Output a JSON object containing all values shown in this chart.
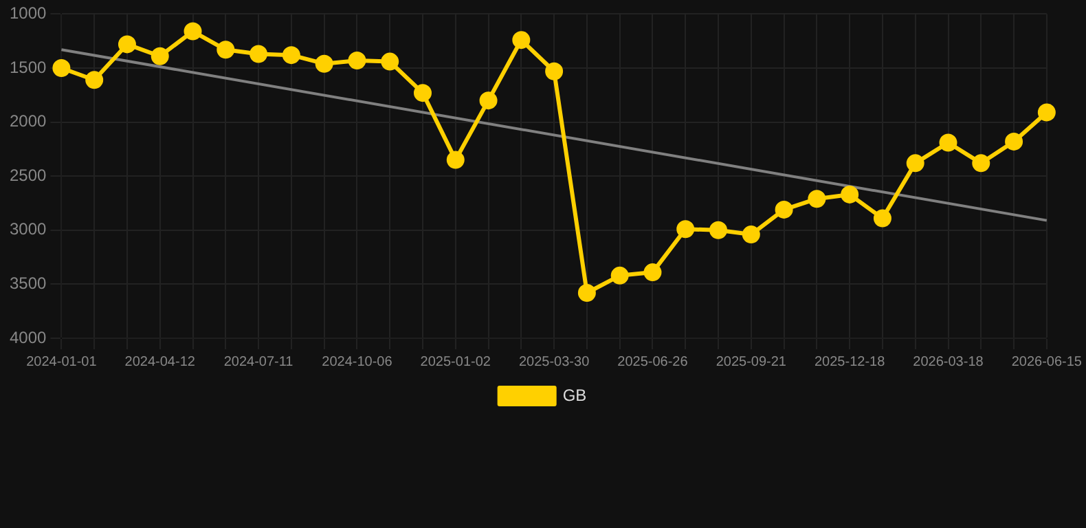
{
  "chart_data": {
    "type": "line",
    "categories": [
      "2024-01-01",
      null,
      null,
      "2024-04-12",
      null,
      null,
      "2024-07-11",
      null,
      null,
      "2024-10-06",
      null,
      null,
      "2025-01-02",
      null,
      null,
      "2025-03-30",
      null,
      null,
      "2025-06-26",
      null,
      null,
      "2025-09-21",
      null,
      null,
      "2025-12-18",
      null,
      null,
      "2026-03-18",
      null,
      null,
      "2026-06-15"
    ],
    "series": [
      {
        "name": "GB",
        "color": "#ffd000",
        "marker": "circle",
        "values": [
          1500,
          1610,
          1280,
          1390,
          1160,
          1330,
          1370,
          1380,
          1460,
          1430,
          1440,
          1730,
          2350,
          1800,
          1240,
          1530,
          3580,
          3420,
          3390,
          2990,
          3000,
          3040,
          2810,
          2710,
          2670,
          2890,
          2380,
          2190,
          2380,
          2180,
          1910
        ]
      },
      {
        "color": "#808080",
        "marker": "none",
        "values": [
          1330,
          null,
          null,
          null,
          null,
          null,
          null,
          null,
          null,
          null,
          null,
          null,
          null,
          null,
          null,
          null,
          null,
          null,
          null,
          null,
          null,
          null,
          null,
          null,
          null,
          null,
          null,
          null,
          null,
          null,
          2910
        ]
      }
    ],
    "ylim": [
      4000,
      1000
    ],
    "yticks": [
      1000,
      1500,
      2000,
      2500,
      3000,
      3500,
      4000
    ],
    "grid": true,
    "legend": "bottom",
    "line_style": "solid"
  }
}
